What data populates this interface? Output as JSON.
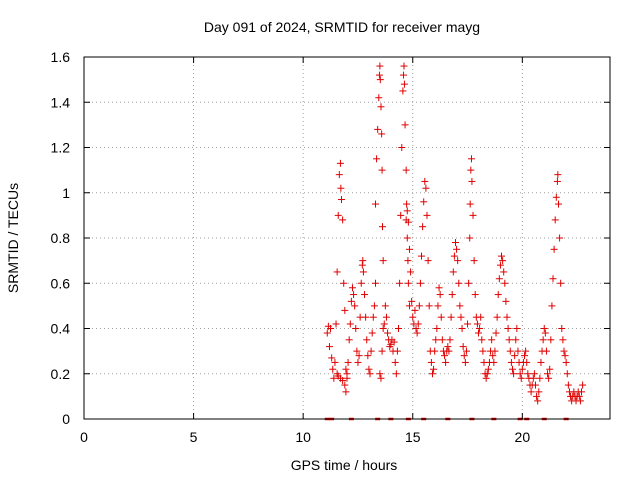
{
  "chart_data": {
    "type": "scatter",
    "title": "Day 091 of 2024, SRMTID for receiver mayg",
    "xlabel": "GPS time / hours",
    "ylabel": "SRMTID / TECUs",
    "xlim": [
      0,
      24
    ],
    "ylim": [
      0,
      1.6
    ],
    "xticks": [
      0,
      5,
      10,
      15,
      20
    ],
    "yticks": [
      0,
      0.2,
      0.4,
      0.6,
      0.8,
      1,
      1.2,
      1.4,
      1.6
    ],
    "ytick_labels": [
      "0",
      "0.2",
      "0.4",
      "0.6",
      "0.8",
      "1",
      "1.2",
      "1.4",
      "1.6"
    ],
    "grid": true,
    "marker": "+",
    "color": "#e00000",
    "series": [
      {
        "name": "SRMTID",
        "points": [
          [
            11.1,
            0.38
          ],
          [
            11.15,
            0.41
          ],
          [
            11.2,
            0.32
          ],
          [
            11.25,
            0.4
          ],
          [
            11.3,
            0.27
          ],
          [
            11.35,
            0.22
          ],
          [
            11.4,
            0.18
          ],
          [
            11.45,
            0.25
          ],
          [
            11.5,
            0.42
          ],
          [
            11.55,
            0.65
          ],
          [
            11.6,
            0.9
          ],
          [
            11.65,
            1.08
          ],
          [
            11.7,
            1.13
          ],
          [
            11.72,
            1.02
          ],
          [
            11.75,
            0.97
          ],
          [
            11.8,
            0.88
          ],
          [
            11.85,
            0.6
          ],
          [
            11.9,
            0.48
          ],
          [
            11.55,
            0.2
          ],
          [
            11.6,
            0.19
          ],
          [
            11.7,
            0.18
          ],
          [
            11.8,
            0.17
          ],
          [
            11.9,
            0.15
          ],
          [
            11.95,
            0.12
          ],
          [
            12.0,
            0.2
          ],
          [
            12.05,
            0.25
          ],
          [
            11.95,
            0.22
          ],
          [
            12.0,
            0.18
          ],
          [
            12.1,
            0.35
          ],
          [
            12.15,
            0.42
          ],
          [
            12.2,
            0.52
          ],
          [
            12.25,
            0.58
          ],
          [
            12.3,
            0.55
          ],
          [
            12.35,
            0.5
          ],
          [
            12.4,
            0.4
          ],
          [
            12.45,
            0.3
          ],
          [
            12.5,
            0.25
          ],
          [
            12.55,
            0.28
          ],
          [
            12.6,
            0.45
          ],
          [
            12.65,
            0.6
          ],
          [
            12.7,
            0.68
          ],
          [
            12.72,
            0.7
          ],
          [
            12.75,
            0.65
          ],
          [
            12.8,
            0.55
          ],
          [
            12.85,
            0.45
          ],
          [
            12.9,
            0.35
          ],
          [
            12.95,
            0.28
          ],
          [
            13.0,
            0.22
          ],
          [
            13.05,
            0.2
          ],
          [
            13.1,
            0.3
          ],
          [
            13.15,
            0.38
          ],
          [
            13.2,
            0.45
          ],
          [
            13.25,
            0.5
          ],
          [
            13.3,
            0.6
          ],
          [
            13.3,
            0.95
          ],
          [
            13.35,
            1.15
          ],
          [
            13.4,
            1.28
          ],
          [
            13.45,
            1.42
          ],
          [
            13.48,
            1.52
          ],
          [
            13.5,
            1.56
          ],
          [
            13.52,
            1.5
          ],
          [
            13.55,
            1.38
          ],
          [
            13.58,
            1.26
          ],
          [
            13.6,
            1.1
          ],
          [
            13.62,
            0.85
          ],
          [
            13.65,
            0.7
          ],
          [
            13.5,
            0.2
          ],
          [
            13.55,
            0.18
          ],
          [
            13.6,
            0.3
          ],
          [
            13.65,
            0.4
          ],
          [
            13.7,
            0.42
          ],
          [
            13.75,
            0.5
          ],
          [
            13.8,
            0.45
          ],
          [
            13.85,
            0.38
          ],
          [
            13.9,
            0.35
          ],
          [
            13.95,
            0.32
          ],
          [
            14.0,
            0.33
          ],
          [
            14.05,
            0.35
          ],
          [
            14.1,
            0.3
          ],
          [
            14.15,
            0.34
          ],
          [
            14.2,
            0.25
          ],
          [
            14.25,
            0.2
          ],
          [
            14.3,
            0.3
          ],
          [
            14.35,
            0.4
          ],
          [
            14.4,
            0.6
          ],
          [
            14.45,
            0.9
          ],
          [
            14.5,
            1.2
          ],
          [
            14.55,
            1.45
          ],
          [
            14.58,
            1.52
          ],
          [
            14.6,
            1.56
          ],
          [
            14.62,
            1.48
          ],
          [
            14.65,
            1.3
          ],
          [
            14.7,
            1.1
          ],
          [
            14.72,
            0.95
          ],
          [
            14.75,
            0.8
          ],
          [
            14.78,
            0.7
          ],
          [
            14.8,
            0.6
          ],
          [
            14.85,
            0.5
          ],
          [
            14.7,
            0.88
          ],
          [
            14.75,
            0.92
          ],
          [
            14.8,
            0.87
          ],
          [
            14.85,
            0.75
          ],
          [
            14.9,
            0.65
          ],
          [
            14.95,
            0.52
          ],
          [
            15.0,
            0.45
          ],
          [
            15.05,
            0.42
          ],
          [
            15.1,
            0.48
          ],
          [
            15.15,
            0.4
          ],
          [
            15.2,
            0.38
          ],
          [
            15.25,
            0.42
          ],
          [
            15.3,
            0.5
          ],
          [
            15.35,
            0.6
          ],
          [
            15.4,
            0.72
          ],
          [
            15.45,
            0.85
          ],
          [
            15.5,
            0.96
          ],
          [
            15.55,
            1.05
          ],
          [
            15.6,
            1.02
          ],
          [
            15.65,
            0.9
          ],
          [
            15.7,
            0.7
          ],
          [
            15.75,
            0.5
          ],
          [
            15.8,
            0.3
          ],
          [
            15.85,
            0.25
          ],
          [
            15.9,
            0.2
          ],
          [
            15.95,
            0.22
          ],
          [
            16.0,
            0.3
          ],
          [
            16.05,
            0.35
          ],
          [
            16.1,
            0.4
          ],
          [
            16.15,
            0.5
          ],
          [
            16.2,
            0.58
          ],
          [
            16.25,
            0.55
          ],
          [
            16.3,
            0.45
          ],
          [
            16.35,
            0.35
          ],
          [
            16.4,
            0.3
          ],
          [
            16.45,
            0.28
          ],
          [
            16.5,
            0.25
          ],
          [
            16.55,
            0.3
          ],
          [
            16.6,
            0.32
          ],
          [
            16.65,
            0.3
          ],
          [
            16.7,
            0.35
          ],
          [
            16.75,
            0.45
          ],
          [
            16.8,
            0.55
          ],
          [
            16.85,
            0.65
          ],
          [
            16.9,
            0.72
          ],
          [
            16.95,
            0.78
          ],
          [
            17.0,
            0.75
          ],
          [
            17.05,
            0.7
          ],
          [
            17.1,
            0.6
          ],
          [
            17.15,
            0.5
          ],
          [
            17.2,
            0.45
          ],
          [
            17.25,
            0.4
          ],
          [
            17.3,
            0.32
          ],
          [
            17.35,
            0.28
          ],
          [
            17.4,
            0.25
          ],
          [
            17.45,
            0.3
          ],
          [
            17.5,
            0.42
          ],
          [
            17.55,
            0.6
          ],
          [
            17.6,
            0.8
          ],
          [
            17.62,
            0.95
          ],
          [
            17.65,
            1.1
          ],
          [
            17.68,
            1.15
          ],
          [
            17.7,
            1.05
          ],
          [
            17.75,
            0.9
          ],
          [
            17.8,
            0.7
          ],
          [
            17.85,
            0.55
          ],
          [
            17.9,
            0.45
          ],
          [
            17.95,
            0.42
          ],
          [
            18.0,
            0.38
          ],
          [
            18.05,
            0.4
          ],
          [
            18.1,
            0.45
          ],
          [
            18.15,
            0.35
          ],
          [
            18.2,
            0.3
          ],
          [
            18.25,
            0.25
          ],
          [
            18.3,
            0.2
          ],
          [
            18.35,
            0.18
          ],
          [
            18.4,
            0.2
          ],
          [
            18.45,
            0.22
          ],
          [
            18.5,
            0.25
          ],
          [
            18.55,
            0.3
          ],
          [
            18.6,
            0.35
          ],
          [
            18.65,
            0.28
          ],
          [
            18.7,
            0.25
          ],
          [
            18.75,
            0.3
          ],
          [
            18.8,
            0.38
          ],
          [
            18.85,
            0.45
          ],
          [
            18.9,
            0.55
          ],
          [
            18.95,
            0.62
          ],
          [
            19.0,
            0.68
          ],
          [
            19.05,
            0.72
          ],
          [
            19.1,
            0.7
          ],
          [
            19.15,
            0.65
          ],
          [
            19.2,
            0.6
          ],
          [
            19.25,
            0.52
          ],
          [
            19.3,
            0.45
          ],
          [
            19.35,
            0.4
          ],
          [
            19.4,
            0.35
          ],
          [
            19.45,
            0.3
          ],
          [
            19.5,
            0.25
          ],
          [
            19.55,
            0.22
          ],
          [
            19.6,
            0.2
          ],
          [
            19.65,
            0.28
          ],
          [
            19.7,
            0.35
          ],
          [
            19.75,
            0.4
          ],
          [
            19.8,
            0.3
          ],
          [
            19.85,
            0.25
          ],
          [
            19.9,
            0.2
          ],
          [
            19.95,
            0.18
          ],
          [
            20.0,
            0.22
          ],
          [
            20.05,
            0.25
          ],
          [
            20.1,
            0.28
          ],
          [
            20.15,
            0.3
          ],
          [
            20.2,
            0.25
          ],
          [
            20.25,
            0.2
          ],
          [
            20.3,
            0.18
          ],
          [
            20.35,
            0.15
          ],
          [
            20.4,
            0.12
          ],
          [
            20.45,
            0.15
          ],
          [
            20.5,
            0.18
          ],
          [
            20.55,
            0.2
          ],
          [
            20.6,
            0.15
          ],
          [
            20.65,
            0.1
          ],
          [
            20.7,
            0.08
          ],
          [
            20.75,
            0.12
          ],
          [
            20.8,
            0.18
          ],
          [
            20.85,
            0.25
          ],
          [
            20.9,
            0.3
          ],
          [
            20.95,
            0.35
          ],
          [
            21.0,
            0.4
          ],
          [
            21.05,
            0.38
          ],
          [
            21.1,
            0.3
          ],
          [
            21.15,
            0.2
          ],
          [
            21.2,
            0.18
          ],
          [
            21.25,
            0.22
          ],
          [
            21.3,
            0.35
          ],
          [
            21.35,
            0.5
          ],
          [
            21.4,
            0.62
          ],
          [
            21.45,
            0.75
          ],
          [
            21.5,
            0.88
          ],
          [
            21.55,
            0.98
          ],
          [
            21.6,
            1.05
          ],
          [
            21.62,
            1.08
          ],
          [
            21.65,
            0.95
          ],
          [
            21.7,
            0.8
          ],
          [
            21.75,
            0.6
          ],
          [
            21.8,
            0.4
          ],
          [
            21.85,
            0.35
          ],
          [
            21.9,
            0.3
          ],
          [
            21.95,
            0.28
          ],
          [
            22.0,
            0.25
          ],
          [
            22.05,
            0.2
          ],
          [
            22.1,
            0.15
          ],
          [
            22.15,
            0.12
          ],
          [
            22.2,
            0.1
          ],
          [
            22.25,
            0.08
          ],
          [
            22.3,
            0.1
          ],
          [
            22.35,
            0.12
          ],
          [
            22.4,
            0.1
          ],
          [
            22.45,
            0.08
          ],
          [
            22.5,
            0.1
          ],
          [
            22.55,
            0.12
          ],
          [
            22.6,
            0.1
          ],
          [
            22.65,
            0.08
          ],
          [
            22.7,
            0.12
          ],
          [
            22.75,
            0.15
          ]
        ]
      }
    ],
    "baseline_marks": [
      11.1,
      11.3,
      12.2,
      13.4,
      14.0,
      14.8,
      15.5,
      16.6,
      17.7,
      18.7,
      19.9,
      20.2,
      21.0,
      22.0
    ]
  }
}
